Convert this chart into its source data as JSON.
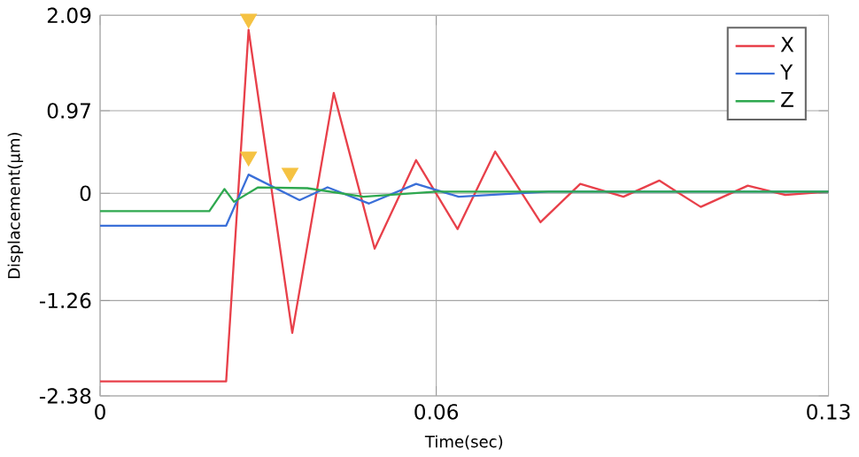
{
  "chart_data": {
    "type": "line",
    "xlabel": "Time(sec)",
    "ylabel": "Displacement(μm)",
    "xlim": [
      0,
      0.13
    ],
    "xticks": [
      0,
      0.06,
      0.13
    ],
    "ylim": [
      -2.38,
      2.09
    ],
    "yticks": [
      -2.38,
      -1.26,
      0,
      0.97,
      2.09
    ],
    "grid": true,
    "legend": "top right",
    "series": [
      {
        "name": "X",
        "color": "#e8404a",
        "x": [
          0,
          0.0225,
          0.0265,
          0.0343,
          0.0417,
          0.049,
          0.0564,
          0.0638,
          0.0705,
          0.0786,
          0.0857,
          0.0934,
          0.0998,
          0.1072,
          0.1156,
          0.1223,
          0.13
        ],
        "values": [
          -2.21,
          -2.21,
          1.92,
          -1.64,
          1.18,
          -0.65,
          0.39,
          -0.42,
          0.49,
          -0.34,
          0.11,
          -0.04,
          0.15,
          -0.16,
          0.09,
          -0.02,
          0.02
        ]
      },
      {
        "name": "Y",
        "color": "#3a6fd8",
        "x": [
          0,
          0.0225,
          0.0265,
          0.0356,
          0.0406,
          0.048,
          0.0564,
          0.064,
          0.08,
          0.1,
          0.13
        ],
        "values": [
          -0.38,
          -0.38,
          0.22,
          -0.08,
          0.07,
          -0.12,
          0.11,
          -0.04,
          0.02,
          0.02,
          0.02
        ]
      },
      {
        "name": "Z",
        "color": "#2ea84f",
        "x": [
          0,
          0.0195,
          0.0222,
          0.0239,
          0.0282,
          0.037,
          0.047,
          0.06,
          0.13
        ],
        "values": [
          -0.21,
          -0.21,
          0.05,
          -0.1,
          0.07,
          0.06,
          -0.04,
          0.02,
          0.02
        ]
      },
      {
        "type": "scatter",
        "color": "#f5c242",
        "marker": "triangle",
        "x": [
          0.0265,
          0.0265,
          0.0339
        ],
        "values": [
          2.05,
          0.43,
          0.24
        ]
      }
    ]
  }
}
